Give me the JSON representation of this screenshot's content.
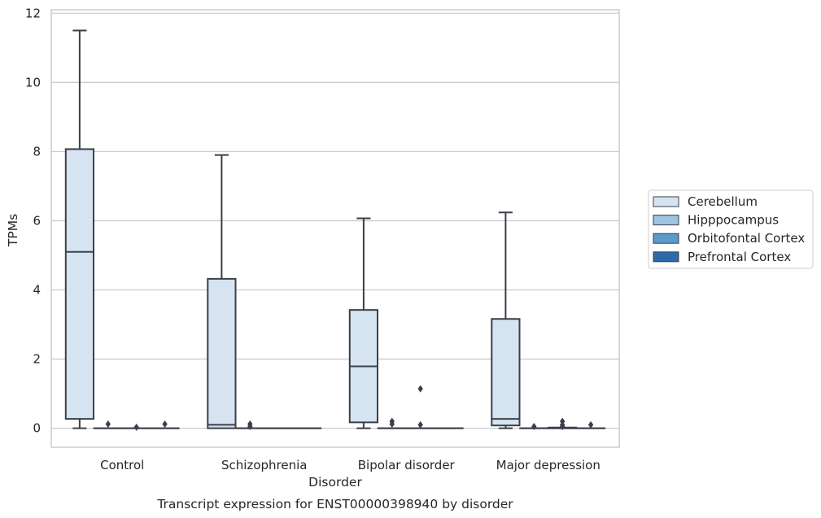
{
  "chart_data": {
    "type": "box",
    "title": "",
    "caption": "Transcript expression for ENST00000398940 by disorder",
    "xlabel": "Disorder",
    "ylabel": "TPMs",
    "ylim": [
      -0.55,
      12.1
    ],
    "yticks": [
      0,
      2,
      4,
      6,
      8,
      10,
      12
    ],
    "grid": "horizontal",
    "legend_position": "right",
    "categories": [
      "Control",
      "Schizophrenia",
      "Bipolar disorder",
      "Major depression"
    ],
    "series": [
      {
        "name": "Cerebellum",
        "color": "#d6e4f2",
        "boxes": [
          {
            "min": 0.0,
            "q1": 0.27,
            "median": 5.1,
            "q3": 8.07,
            "max": 11.5,
            "outliers": []
          },
          {
            "min": 0.0,
            "q1": 0.0,
            "median": 0.1,
            "q3": 4.32,
            "max": 7.9,
            "outliers": []
          },
          {
            "min": 0.0,
            "q1": 0.17,
            "median": 1.79,
            "q3": 3.42,
            "max": 6.07,
            "outliers": []
          },
          {
            "min": 0.0,
            "q1": 0.08,
            "median": 0.27,
            "q3": 3.16,
            "max": 6.24,
            "outliers": []
          }
        ]
      },
      {
        "name": "Hipppocampus",
        "color": "#9dc4e0",
        "boxes": [
          {
            "min": 0.0,
            "q1": 0.0,
            "median": 0.0,
            "q3": 0.0,
            "max": 0.0,
            "outliers": [
              0.12
            ]
          },
          {
            "min": 0.0,
            "q1": 0.0,
            "median": 0.0,
            "q3": 0.0,
            "max": 0.0,
            "outliers": [
              0.12,
              0.05
            ]
          },
          {
            "min": 0.0,
            "q1": 0.0,
            "median": 0.0,
            "q3": 0.0,
            "max": 0.0,
            "outliers": [
              0.2,
              0.12
            ]
          },
          {
            "min": 0.0,
            "q1": 0.0,
            "median": 0.0,
            "q3": 0.0,
            "max": 0.0,
            "outliers": [
              0.05
            ]
          }
        ]
      },
      {
        "name": "Orbitofontal Cortex",
        "color": "#5b9ac9",
        "boxes": [
          {
            "min": 0.0,
            "q1": 0.0,
            "median": 0.0,
            "q3": 0.0,
            "max": 0.0,
            "outliers": [
              0.03
            ]
          },
          {
            "min": 0.0,
            "q1": 0.0,
            "median": 0.0,
            "q3": 0.0,
            "max": 0.0,
            "outliers": []
          },
          {
            "min": 0.0,
            "q1": 0.0,
            "median": 0.0,
            "q3": 0.0,
            "max": 0.0,
            "outliers": [
              1.14,
              0.1
            ]
          },
          {
            "min": 0.0,
            "q1": 0.0,
            "median": 0.0,
            "q3": 0.02,
            "max": 0.02,
            "outliers": [
              0.2,
              0.1,
              0.05
            ]
          }
        ]
      },
      {
        "name": "Prefrontal Cortex",
        "color": "#2b6ba8",
        "boxes": [
          {
            "min": 0.0,
            "q1": 0.0,
            "median": 0.0,
            "q3": 0.0,
            "max": 0.0,
            "outliers": [
              0.12
            ]
          },
          {
            "min": 0.0,
            "q1": 0.0,
            "median": 0.0,
            "q3": 0.0,
            "max": 0.0,
            "outliers": []
          },
          {
            "min": 0.0,
            "q1": 0.0,
            "median": 0.0,
            "q3": 0.0,
            "max": 0.0,
            "outliers": []
          },
          {
            "min": 0.0,
            "q1": 0.0,
            "median": 0.0,
            "q3": 0.0,
            "max": 0.0,
            "outliers": [
              0.1
            ]
          }
        ]
      }
    ]
  }
}
